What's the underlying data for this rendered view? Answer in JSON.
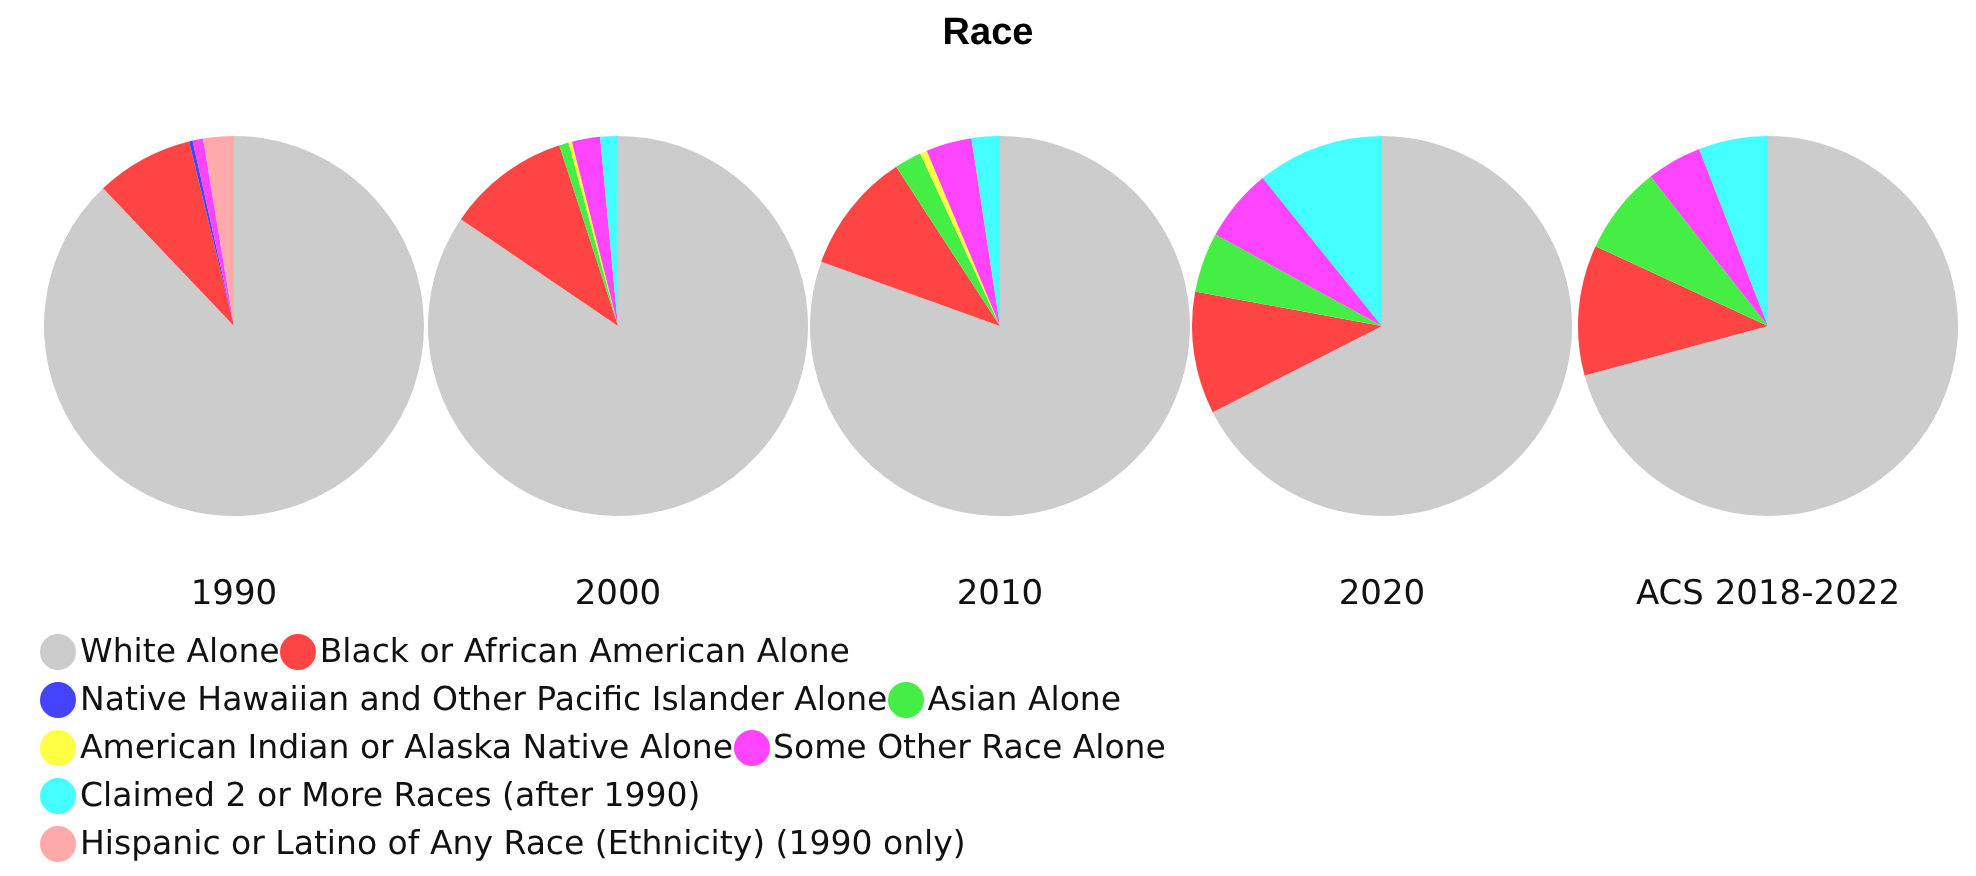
{
  "chart_data": {
    "type": "pie",
    "title": "Race",
    "legend": "bottom",
    "categories": [
      "White Alone",
      "Black or African American Alone",
      "Native Hawaiian and Other Pacific Islander Alone",
      "Asian Alone",
      "American Indian or Alaska Native Alone",
      "Some Other Race Alone",
      "Claimed 2 or More Races (after 1990)",
      "Hispanic or Latino of Any Race (Ethnicity) (1990 only)"
    ],
    "colors": [
      "#cccccc",
      "#ff4444",
      "#4444ff",
      "#44ee44",
      "#ffff44",
      "#ff44ff",
      "#44ffff",
      "#ffaaaa"
    ],
    "series": [
      {
        "name": "1990",
        "values": [
          87.9,
          8.3,
          0.3,
          0,
          0,
          0.9,
          0,
          2.6
        ]
      },
      {
        "name": "2000",
        "values": [
          84.5,
          10.5,
          0,
          0.8,
          0.3,
          2.4,
          1.5,
          0
        ]
      },
      {
        "name": "2010",
        "values": [
          80.5,
          10.3,
          0,
          2.3,
          0.6,
          3.9,
          2.4,
          0
        ]
      },
      {
        "name": "2020",
        "values": [
          67.5,
          10.4,
          0,
          5.1,
          0,
          6.2,
          10.8,
          0
        ]
      },
      {
        "name": "ACS 2018-2022",
        "values": [
          70.8,
          11.1,
          0,
          7.5,
          0,
          4.7,
          5.9,
          0
        ]
      }
    ]
  }
}
